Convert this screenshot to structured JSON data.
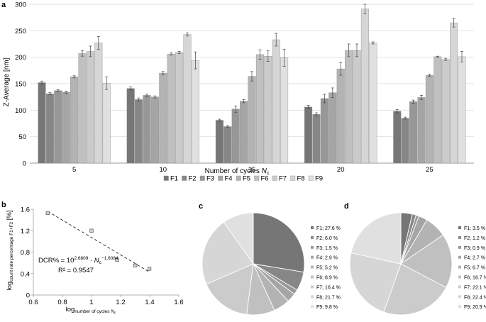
{
  "colors": {
    "series": [
      "#767676",
      "#878787",
      "#979797",
      "#a5a5a5",
      "#b3b3b3",
      "#c0c0c0",
      "#cbcbcb",
      "#d6d6d6",
      "#e0e0e0"
    ],
    "axis": "#b0b0b0",
    "text": "#222222"
  },
  "chart_data": [
    {
      "panel": "a",
      "type": "bar",
      "categories": [
        "5",
        "10",
        "15",
        "20",
        "25"
      ],
      "ylabel": "Z-Average [nm]",
      "xlabel_main": "Number of cycles ",
      "xlabel_var": "N",
      "xlabel_sub": "c",
      "ylim": [
        0,
        300
      ],
      "yticks": [
        "0",
        "50",
        "100",
        "150",
        "200",
        "250",
        "300"
      ],
      "legend_position": "bottom",
      "series": [
        {
          "name": "F1",
          "values": [
            152,
            141,
            81,
            106,
            98
          ],
          "errors": [
            3,
            3,
            2,
            3,
            3
          ]
        },
        {
          "name": "F2",
          "values": [
            131,
            120,
            69,
            92,
            85
          ],
          "errors": [
            2,
            3,
            2,
            3,
            2
          ]
        },
        {
          "name": "F3",
          "values": [
            137,
            128,
            102,
            122,
            116
          ],
          "errors": [
            2,
            2,
            6,
            8,
            3
          ]
        },
        {
          "name": "F4",
          "values": [
            134,
            125,
            117,
            133,
            124
          ],
          "errors": [
            2,
            2,
            3,
            9,
            4
          ]
        },
        {
          "name": "F5",
          "values": [
            163,
            170,
            164,
            178,
            166
          ],
          "errors": [
            2,
            3,
            9,
            12,
            2
          ]
        },
        {
          "name": "F6",
          "values": [
            207,
            206,
            205,
            213,
            201
          ],
          "errors": [
            5,
            2,
            9,
            12,
            1
          ]
        },
        {
          "name": "F7",
          "values": [
            211,
            209,
            202,
            213,
            196
          ],
          "errors": [
            10,
            2,
            10,
            12,
            2
          ]
        },
        {
          "name": "F8",
          "values": [
            227,
            243,
            233,
            291,
            265
          ],
          "errors": [
            12,
            3,
            12,
            9,
            8
          ]
        },
        {
          "name": "F9",
          "values": [
            151,
            194,
            199,
            227,
            201
          ],
          "errors": [
            12,
            16,
            16,
            2,
            10
          ]
        }
      ]
    },
    {
      "panel": "b",
      "type": "scatter",
      "x": [
        0.699,
        1.0,
        1.176,
        1.301,
        1.398
      ],
      "y": [
        1.53,
        1.2,
        0.66,
        0.55,
        0.49
      ],
      "fit": {
        "x": [
          0.699,
          1.398
        ],
        "y": [
          1.56,
          0.43
        ]
      },
      "xlim": [
        0.6,
        1.6
      ],
      "ylim": [
        0,
        1.6
      ],
      "xticks": [
        "0.6",
        "0.8",
        "1",
        "1.2",
        "1.4",
        "1.6"
      ],
      "yticks": [
        "0",
        "0.4",
        "0.8",
        "1.2",
        "1.6"
      ],
      "xlabel_main": "log",
      "xlabel_sub": "number of cycles ",
      "xlabel_subvar": "N",
      "xlabel_subsub": "c",
      "ylabel_main": "log",
      "ylabel_sub": "count rate percentage F1+F2",
      "ylabel_unit": " [%]",
      "eq_lhs": "DCR% = 10",
      "eq_exp1": "2.6809",
      "eq_dot": " · ",
      "eq_var": "N",
      "eq_sub": "c",
      "eq_exp2": "−1.6084",
      "r2": "R² = 0.9547"
    },
    {
      "panel": "c",
      "type": "pie",
      "labels": [
        "F1",
        "F2",
        "F3",
        "F4",
        "F5",
        "F6",
        "F7",
        "F8",
        "F9"
      ],
      "values": [
        27.6,
        6.0,
        1.5,
        2.9,
        5.2,
        8.9,
        16.4,
        21.7,
        9.8
      ],
      "legend": [
        "F1; 27.6 %",
        "F2; 6.0 %",
        "F3; 1.5 %",
        "F4; 2.9 %",
        "F5; 5.2 %",
        "F6; 8.9 %",
        "F7; 16.4 %",
        "F8; 21.7 %",
        "F9; 9.8 %"
      ]
    },
    {
      "panel": "d",
      "type": "pie",
      "labels": [
        "F1",
        "F2",
        "F3",
        "F4",
        "F5",
        "F6",
        "F7",
        "F8",
        "F9"
      ],
      "values": [
        3.5,
        1.2,
        0.9,
        2.7,
        6.7,
        16.7,
        22.1,
        22.4,
        20.9
      ],
      "legend": [
        "F1; 3.5 %",
        "F2; 1.2 %",
        "F3; 0.9 %",
        "F4; 2.7 %",
        "F5; 6.7 %",
        "F6; 16.7 %",
        "F7; 22.1 %",
        "F8; 22.4 %",
        "F9; 20.9 %"
      ]
    }
  ]
}
